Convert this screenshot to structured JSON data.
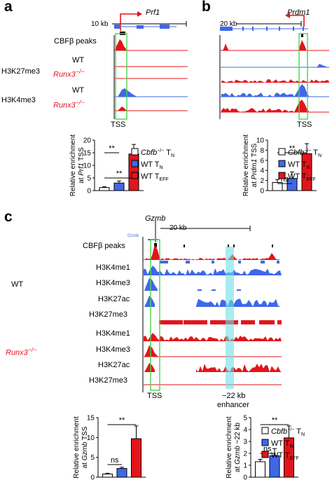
{
  "panels": {
    "a": {
      "letter": "a",
      "gene": "Prf1",
      "scale": "10 kb",
      "row_labels": [
        "CBFβ peaks",
        "H3K27me3",
        "WT",
        "Runx3",
        "−/−",
        "H3K4me3",
        "WT",
        "Runx3",
        "−/−"
      ],
      "tss": "TSS",
      "ylabel1": "Relative enrichment",
      "ylabel2": "at ",
      "ylabel_gene": "Prf1",
      "ylabel3": " TSS",
      "sig": [
        "**",
        "**"
      ],
      "legend": [
        "Cbfb",
        "−/−",
        " T",
        "N",
        "WT T",
        "N",
        "WT T",
        "EFF"
      ]
    },
    "b": {
      "letter": "b",
      "gene": "Prdm1",
      "scale": "20 kb",
      "tss": "TSS",
      "ylabel1": "Relative enrichment",
      "ylabel2": "at ",
      "ylabel_gene": "Prdm1",
      "ylabel3": " TSS",
      "sig": [
        "**",
        "ns"
      ],
      "legend": [
        "Cbfb",
        "−/−",
        " T",
        "N",
        "WT T",
        "N",
        "WT T",
        "EFF"
      ]
    },
    "c": {
      "letter": "c",
      "gene": "Gzmb",
      "gene_small": "Gzmb",
      "scale": "20 kb",
      "cbf": "CBFβ peaks",
      "wt": "WT",
      "runx": "Runx3",
      "runx_sup": "−/−",
      "marks": [
        "H3K4me1",
        "H3K4me3",
        "H3K27ac",
        "H3K27me3"
      ],
      "tss": "TSS",
      "enh1": "−22 kb",
      "enh2": "enhancer",
      "ylabel_left": [
        "Relative enrichment",
        "at ",
        "Gzmb",
        " TSS"
      ],
      "ylabel_right": [
        "Relative enrichment",
        "at ",
        "Gzmb",
        " −22 kb"
      ],
      "sig": [
        "**",
        "ns",
        "**",
        "ns"
      ],
      "legend": [
        "Cbfb",
        "−/−",
        " T",
        "N",
        "WT T",
        "N",
        "WT T",
        "EFF"
      ]
    }
  },
  "chart_data": [
    {
      "type": "bar",
      "title": "",
      "ylabel": "Relative enrichment at Prf1 TSS",
      "categories": [
        "Cbfb−/− TN",
        "WT TN",
        "WT TEFF"
      ],
      "values": [
        1.2,
        3.0,
        14.5
      ],
      "errors": [
        0.3,
        0.8,
        3.8
      ],
      "ylim": [
        0,
        20
      ],
      "yticks": [
        0,
        5,
        10,
        15,
        20
      ],
      "colors": [
        "#ffffff",
        "#3f68e8",
        "#e3141b"
      ]
    },
    {
      "type": "bar",
      "title": "",
      "ylabel": "Relative enrichment at Prdm1 TSS",
      "categories": [
        "Cbfb−/− TN",
        "WT TN",
        "WT TEFF"
      ],
      "values": [
        1.6,
        2.4,
        7.3
      ],
      "errors": [
        0.6,
        1.3,
        2.0
      ],
      "ylim": [
        0,
        10
      ],
      "yticks": [
        0,
        2,
        4,
        6,
        8,
        10
      ],
      "colors": [
        "#ffffff",
        "#3f68e8",
        "#e3141b"
      ]
    },
    {
      "type": "bar",
      "title": "",
      "ylabel": "Relative enrichment at Gzmb TSS",
      "categories": [
        "Cbfb−/− TN",
        "WT TN",
        "WT TEFF"
      ],
      "values": [
        0.8,
        2.2,
        9.7
      ],
      "errors": [
        0.2,
        0.3,
        3.2
      ],
      "ylim": [
        0,
        15
      ],
      "yticks": [
        0,
        5,
        10,
        15
      ],
      "colors": [
        "#ffffff",
        "#3f68e8",
        "#e3141b"
      ]
    },
    {
      "type": "bar",
      "title": "",
      "ylabel": "Relative enrichment at Gzmb −22 kb",
      "categories": [
        "Cbfb−/− TN",
        "WT TN",
        "WT TEFF"
      ],
      "values": [
        1.3,
        1.8,
        3.3
      ],
      "errors": [
        0.2,
        0.6,
        1.0
      ],
      "ylim": [
        0,
        5
      ],
      "yticks": [
        0,
        1,
        2,
        3,
        4,
        5
      ],
      "colors": [
        "#ffffff",
        "#3f68e8",
        "#e3141b"
      ]
    }
  ]
}
